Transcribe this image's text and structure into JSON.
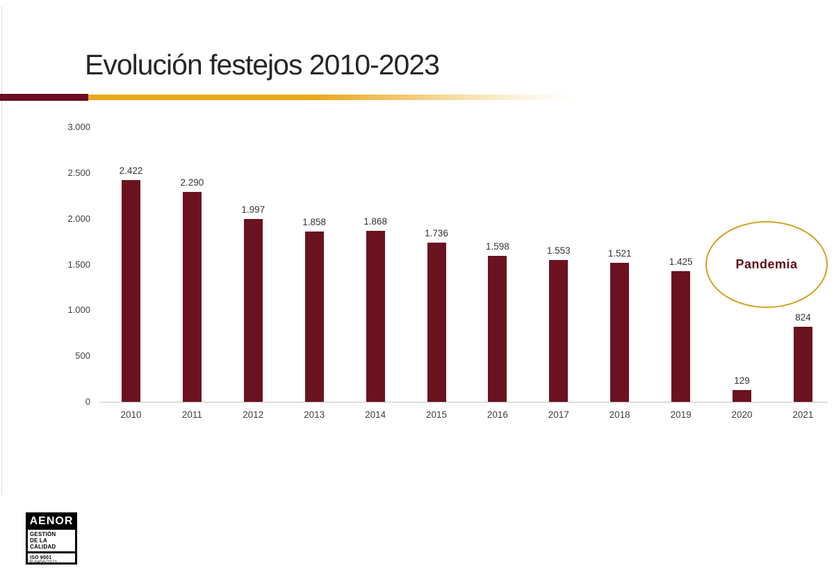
{
  "title": "Evolución festejos 2010-2023",
  "divider": {
    "maroon_color": "#6c0e1f",
    "gold_color": "#eba71b"
  },
  "annotation": {
    "label": "Pandemia",
    "text_color": "#5e1114",
    "ring_color": "#d5a021"
  },
  "logo": {
    "brand": "AENOR",
    "line1": "GESTIÓN",
    "line2": "DE LA CALIDAD",
    "standard": "ISO 9001",
    "certificate": "ER-0456/2021"
  },
  "chart_data": {
    "type": "bar",
    "title": "Evolución festejos 2010-2023",
    "categories": [
      "2010",
      "2011",
      "2012",
      "2013",
      "2014",
      "2015",
      "2016",
      "2017",
      "2018",
      "2019",
      "2020",
      "2021"
    ],
    "values": [
      2422,
      2290,
      1997,
      1858,
      1868,
      1736,
      1598,
      1553,
      1521,
      1425,
      129,
      824
    ],
    "value_labels": [
      "2.422",
      "2.290",
      "1.997",
      "1.858",
      "1.868",
      "1.736",
      "1.598",
      "1.553",
      "1.521",
      "1.425",
      "129",
      "824"
    ],
    "y_ticks": [
      {
        "value": 0,
        "label": "0"
      },
      {
        "value": 500,
        "label": "500"
      },
      {
        "value": 1000,
        "label": "1.000"
      },
      {
        "value": 1500,
        "label": "1.500"
      },
      {
        "value": 2000,
        "label": "2.000"
      },
      {
        "value": 2500,
        "label": "2.500"
      },
      {
        "value": 3000,
        "label": "3.000"
      }
    ],
    "xlabel": "",
    "ylabel": "",
    "ylim": [
      0,
      3000
    ],
    "grid": false,
    "legend": "none",
    "bar_color": "#6b1221",
    "annotation": "Pandemia"
  }
}
